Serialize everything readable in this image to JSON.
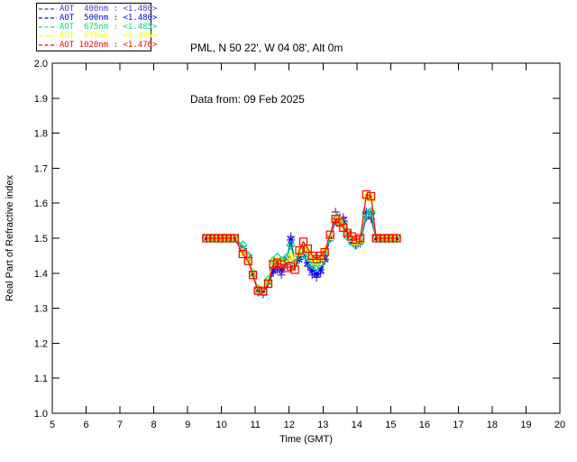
{
  "header": {
    "station_line": "PML, N 50 22', W 04 08', Alt 0m",
    "date_line": "Data from: 09 Feb 2025"
  },
  "legend": {
    "entries": [
      {
        "wavelength": "400nm",
        "label": "AOT  400nm : <1.480>",
        "value": "<1.480>",
        "color": "#5532CC",
        "marker": "plus"
      },
      {
        "wavelength": "500nm",
        "label": "AOT  500nm : <1.480>",
        "value": "<1.480>",
        "color": "#0000FF",
        "marker": "asterisk"
      },
      {
        "wavelength": "675nm",
        "label": "AOT  675nm : <1.485>",
        "value": "<1.485>",
        "color": "#00E070",
        "marker": "diamond"
      },
      {
        "wavelength": "870nm",
        "label": "AOT  870nm : <1.485>",
        "value": "<1.485>",
        "color": "#FFFF00",
        "marker": "triangle"
      },
      {
        "wavelength": "1020nm",
        "label": "AOT 1020nm : <1.476>",
        "value": "<1.476>",
        "color": "#FF0000",
        "marker": "square"
      }
    ]
  },
  "chart_data": {
    "type": "line",
    "title": "",
    "xlabel": "Time (GMT)",
    "ylabel": "Real Part of Refractive index",
    "xlim": [
      5,
      20
    ],
    "ylim": [
      1.0,
      2.0
    ],
    "xticks": [
      5,
      6,
      7,
      8,
      9,
      10,
      11,
      12,
      13,
      14,
      15,
      16,
      17,
      18,
      19,
      20
    ],
    "yticks": [
      1.0,
      1.1,
      1.2,
      1.3,
      1.4,
      1.5,
      1.6,
      1.7,
      1.8,
      1.9,
      2.0
    ],
    "grid": false,
    "legend_position": "outside-top-left",
    "x": [
      9.55,
      9.67,
      9.79,
      9.91,
      10.03,
      10.15,
      10.27,
      10.39,
      10.63,
      10.79,
      10.93,
      11.08,
      11.23,
      11.38,
      11.53,
      11.65,
      11.77,
      11.93,
      12.05,
      12.17,
      12.3,
      12.42,
      12.55,
      12.68,
      12.81,
      12.93,
      13.05,
      13.21,
      13.37,
      13.5,
      13.6,
      13.72,
      13.85,
      13.97,
      14.1,
      14.28,
      14.42,
      14.57,
      14.7,
      14.82,
      14.94,
      15.06,
      15.18
    ],
    "series": [
      {
        "id": "400nm",
        "name": "AOT 400nm",
        "mean_label": "<1.480>",
        "color": "#5532CC",
        "marker": "plus",
        "values": [
          1.5,
          1.5,
          1.5,
          1.5,
          1.5,
          1.5,
          1.5,
          1.5,
          1.465,
          1.44,
          1.395,
          1.345,
          1.34,
          1.37,
          1.4,
          1.41,
          1.395,
          1.43,
          1.505,
          1.42,
          1.44,
          1.46,
          1.42,
          1.395,
          1.388,
          1.4,
          1.435,
          1.505,
          1.575,
          1.56,
          1.56,
          1.52,
          1.49,
          1.48,
          1.485,
          1.56,
          1.555,
          1.5,
          1.5,
          1.5,
          1.5,
          1.5,
          1.5
        ]
      },
      {
        "id": "500nm",
        "name": "AOT 500nm",
        "mean_label": "<1.480>",
        "color": "#0000FF",
        "marker": "asterisk",
        "values": [
          1.5,
          1.5,
          1.5,
          1.5,
          1.5,
          1.5,
          1.5,
          1.5,
          1.47,
          1.445,
          1.398,
          1.35,
          1.348,
          1.375,
          1.41,
          1.42,
          1.41,
          1.44,
          1.495,
          1.43,
          1.44,
          1.455,
          1.43,
          1.408,
          1.398,
          1.41,
          1.44,
          1.5,
          1.55,
          1.545,
          1.55,
          1.51,
          1.49,
          1.485,
          1.49,
          1.575,
          1.57,
          1.5,
          1.5,
          1.5,
          1.5,
          1.5,
          1.5
        ]
      },
      {
        "id": "675nm",
        "name": "AOT 675nm",
        "mean_label": "<1.485>",
        "color": "#00E070",
        "marker": "diamond",
        "values": [
          1.5,
          1.5,
          1.5,
          1.5,
          1.5,
          1.5,
          1.5,
          1.5,
          1.48,
          1.45,
          1.4,
          1.355,
          1.352,
          1.38,
          1.435,
          1.445,
          1.435,
          1.445,
          1.48,
          1.43,
          1.45,
          1.465,
          1.445,
          1.425,
          1.42,
          1.43,
          1.455,
          1.5,
          1.555,
          1.545,
          1.545,
          1.505,
          1.49,
          1.48,
          1.49,
          1.57,
          1.575,
          1.5,
          1.5,
          1.5,
          1.5,
          1.5,
          1.5
        ]
      },
      {
        "id": "870nm",
        "name": "AOT 870nm",
        "mean_label": "<1.485>",
        "color": "#FFFF00",
        "marker": "triangle",
        "values": [
          1.5,
          1.5,
          1.5,
          1.5,
          1.5,
          1.5,
          1.5,
          1.5,
          1.46,
          1.44,
          1.398,
          1.352,
          1.35,
          1.375,
          1.43,
          1.435,
          1.43,
          1.425,
          1.45,
          1.42,
          1.46,
          1.48,
          1.465,
          1.445,
          1.435,
          1.445,
          1.465,
          1.505,
          1.56,
          1.55,
          1.535,
          1.515,
          1.5,
          1.49,
          1.495,
          1.62,
          1.615,
          1.5,
          1.5,
          1.5,
          1.5,
          1.5,
          1.5
        ]
      },
      {
        "id": "1020nm",
        "name": "AOT 1020nm",
        "mean_label": "<1.476>",
        "color": "#FF0000",
        "marker": "square",
        "values": [
          1.5,
          1.5,
          1.5,
          1.5,
          1.5,
          1.5,
          1.5,
          1.5,
          1.455,
          1.435,
          1.395,
          1.35,
          1.348,
          1.37,
          1.425,
          1.43,
          1.425,
          1.415,
          1.42,
          1.41,
          1.465,
          1.49,
          1.47,
          1.45,
          1.44,
          1.45,
          1.46,
          1.51,
          1.555,
          1.545,
          1.53,
          1.515,
          1.505,
          1.495,
          1.5,
          1.625,
          1.62,
          1.5,
          1.5,
          1.5,
          1.5,
          1.5,
          1.5
        ]
      }
    ]
  }
}
